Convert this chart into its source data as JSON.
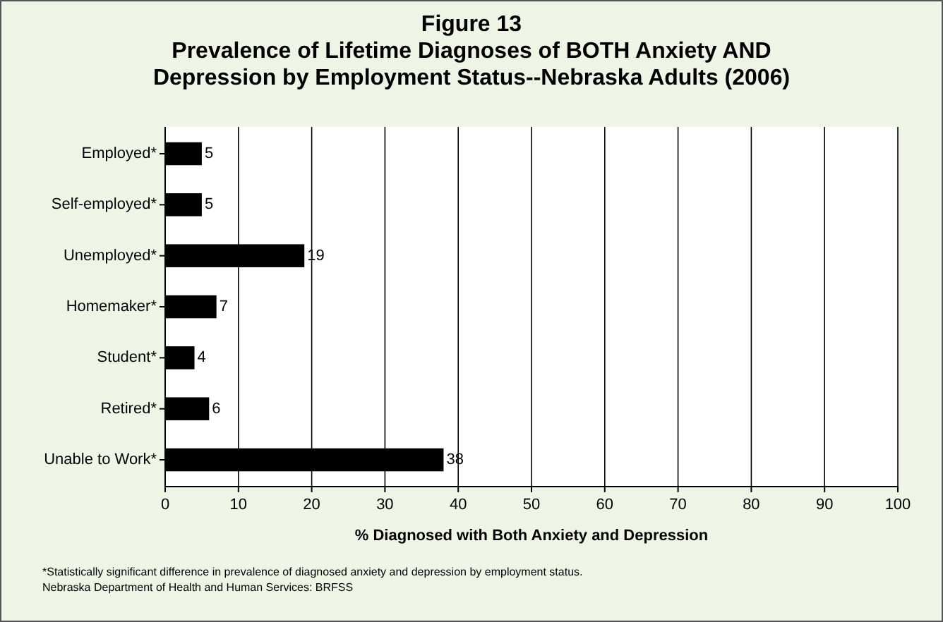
{
  "chart_data": {
    "type": "bar",
    "orientation": "horizontal",
    "title": "Figure 13\nPrevalence of Lifetime Diagnoses of BOTH Anxiety AND\nDepression by Employment Status--Nebraska Adults (2006)",
    "categories": [
      "Employed*",
      "Self-employed*",
      "Unemployed*",
      "Homemaker*",
      "Student*",
      "Retired*",
      "Unable to Work*"
    ],
    "values": [
      5,
      5,
      19,
      7,
      4,
      6,
      38
    ],
    "color": "#000000",
    "data_labels": true,
    "xlim": [
      0,
      100
    ],
    "xticks": [
      0,
      10,
      20,
      30,
      40,
      50,
      60,
      70,
      80,
      90,
      100
    ],
    "grid": "x",
    "xlabel": "% Diagnosed with Both Anxiety and Depression",
    "annotations": [
      "*Statistically significant difference in prevalence of diagnosed anxiety and depression by employment status.",
      "Nebraska Department of Health and Human Services: BRFSS"
    ]
  }
}
